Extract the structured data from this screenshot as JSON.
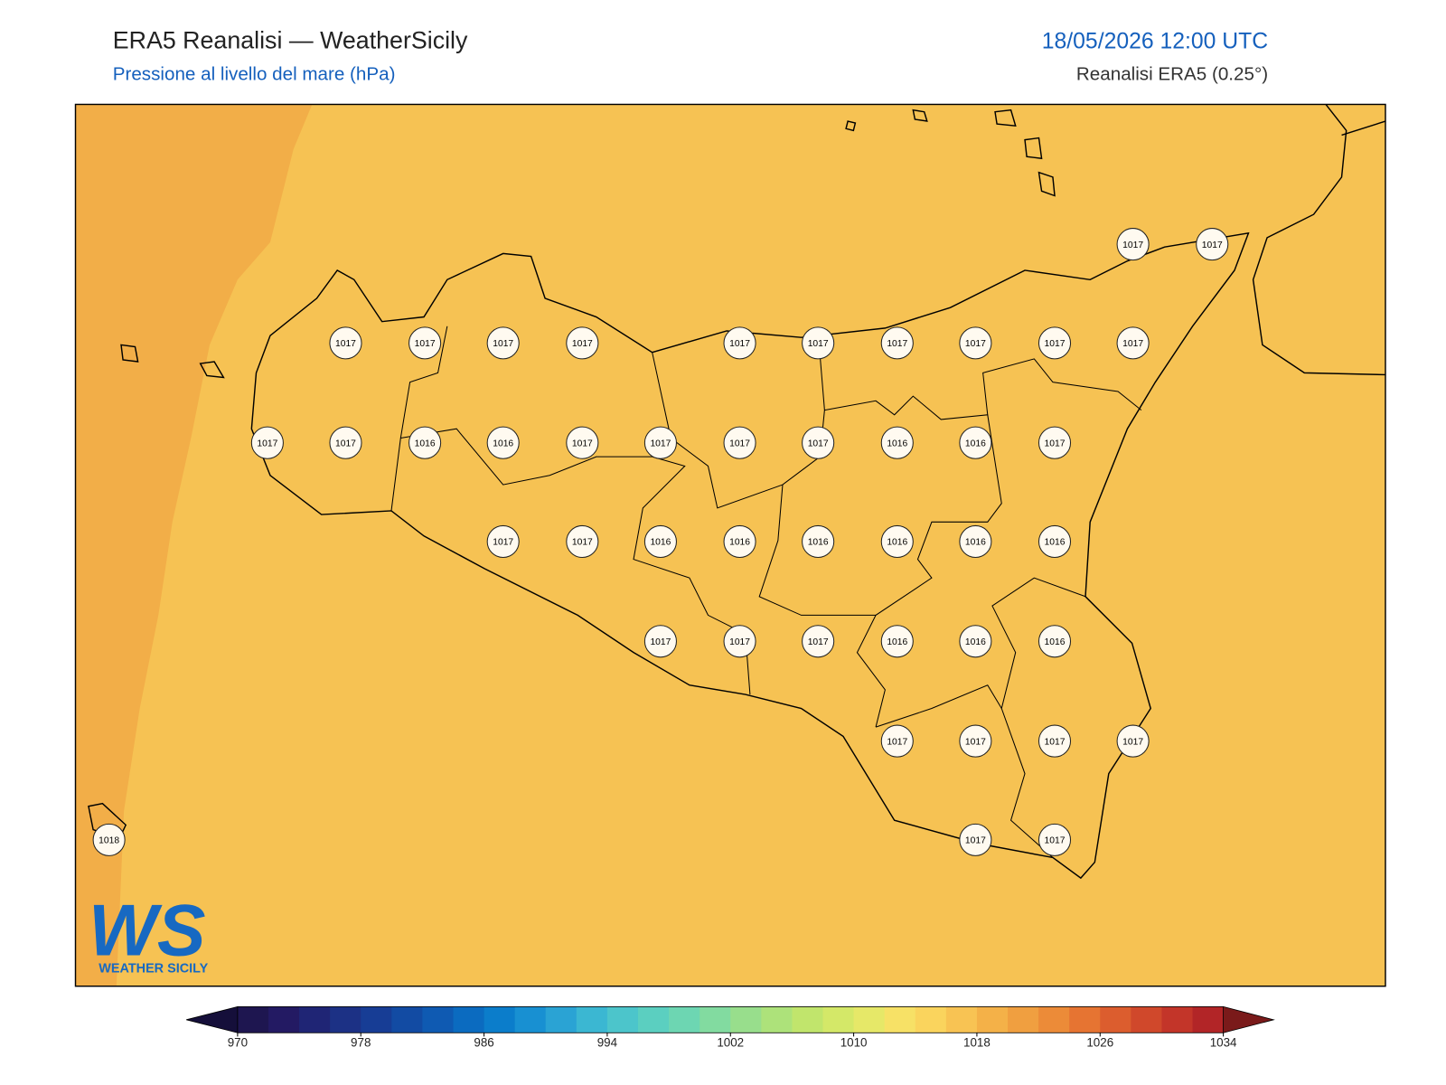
{
  "header": {
    "title": "ERA5 Reanalisi — WeatherSicily",
    "subtitle": "Pressione al livello del mare (hPa)",
    "datetime": "18/05/2026 12:00 UTC",
    "source": "Reanalisi ERA5 (0.25°)"
  },
  "stations": [
    1017,
    1017,
    1017,
    1017,
    1017,
    1017,
    1017,
    1017,
    1017,
    1017,
    1017,
    1017,
    1017,
    1017,
    1016,
    1016,
    1017,
    1017,
    1017,
    1017,
    1016,
    1016,
    1017,
    1017,
    1017,
    1016,
    1016,
    1016,
    1016,
    1016,
    1016,
    1017,
    1017,
    1017,
    1016,
    1016,
    1016,
    1017,
    1017,
    1017,
    1017,
    1018,
    1017,
    1017
  ],
  "colorbar": {
    "lim": [
      970,
      1034
    ],
    "ticks": [
      970,
      978,
      986,
      994,
      1002,
      1010,
      1018,
      1026,
      1034
    ],
    "colors": [
      "#1e1650",
      "#231a63",
      "#1f2575",
      "#1c3185",
      "#173d95",
      "#124ba3",
      "#0f5ab2",
      "#0b6bc0",
      "#0b7dcb",
      "#1890d2",
      "#2aa3d4",
      "#3bb7d2",
      "#4cc5cb",
      "#5bcfc0",
      "#6dd6b2",
      "#82dba0",
      "#98de8c",
      "#ade27a",
      "#c1e56c",
      "#d4e868",
      "#e6e868",
      "#f7e166",
      "#fad45d",
      "#f8c353",
      "#f4b148",
      "#f09f40",
      "#ec8b38",
      "#e67432",
      "#dc5d2e",
      "#d0482b",
      "#c33529",
      "#b22527"
    ],
    "under_color": "#150f3a",
    "over_color": "#7a1a1a"
  },
  "logo": {
    "mark": "WS",
    "text": "WEATHER SICILY"
  }
}
